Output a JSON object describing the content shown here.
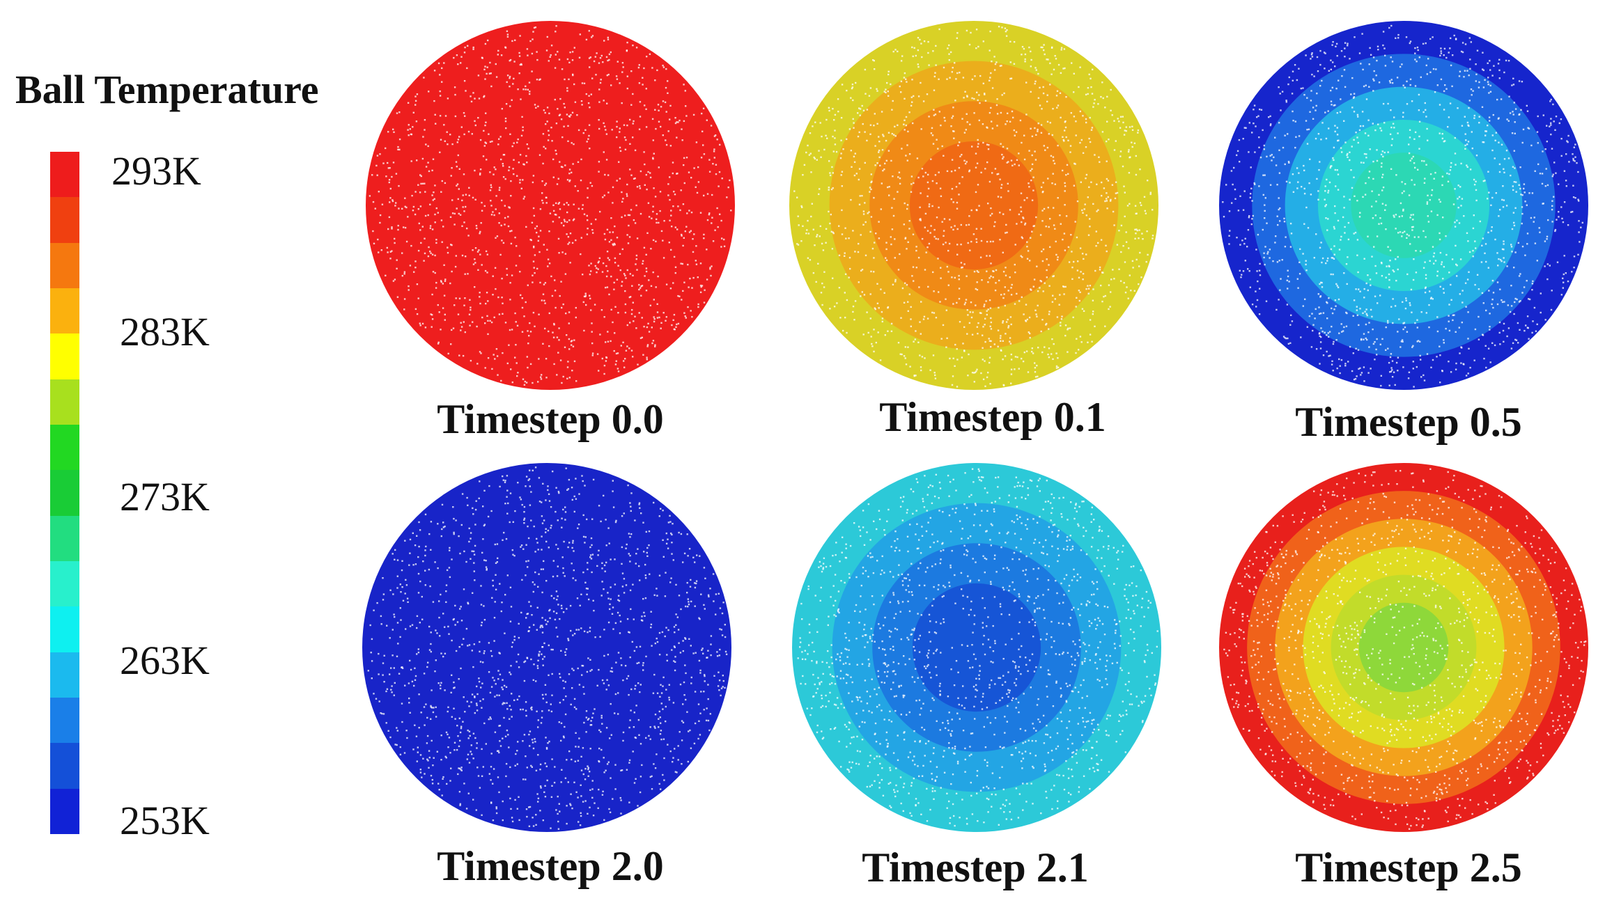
{
  "legend": {
    "title": "Ball Temperature",
    "ticks": [
      "293K",
      "283K",
      "273K",
      "263K",
      "253K"
    ],
    "colorbar_colors": [
      "#ee1c1c",
      "#f04010",
      "#f5780f",
      "#fbb10e",
      "#ffff00",
      "#a8e01e",
      "#22d822",
      "#19cc36",
      "#22dd80",
      "#28f0cc",
      "#0ef0f0",
      "#1bbaee",
      "#1a7fe8",
      "#1450d8",
      "#1122d6"
    ]
  },
  "panels": [
    {
      "caption": "Timestep 0.0",
      "colors": [
        "#ee1e1e"
      ]
    },
    {
      "caption": "Timestep 0.1",
      "colors": [
        "#d9d126",
        "#ebae1c",
        "#f08a16",
        "#f06a14"
      ]
    },
    {
      "caption": "Timestep 0.5",
      "colors": [
        "#1625cc",
        "#1e68e0",
        "#24aee6",
        "#2bd5d2",
        "#2cd8b4"
      ]
    },
    {
      "caption": "Timestep 2.0",
      "colors": [
        "#1824c8"
      ]
    },
    {
      "caption": "Timestep 2.1",
      "colors": [
        "#2cc9d8",
        "#23a5e4",
        "#1c7ae0",
        "#1655d6"
      ]
    },
    {
      "caption": "Timestep 2.5",
      "colors": [
        "#e8201c",
        "#f0621a",
        "#f3a21c",
        "#e0dc22",
        "#c2dc2a",
        "#8ed83a"
      ]
    }
  ]
}
